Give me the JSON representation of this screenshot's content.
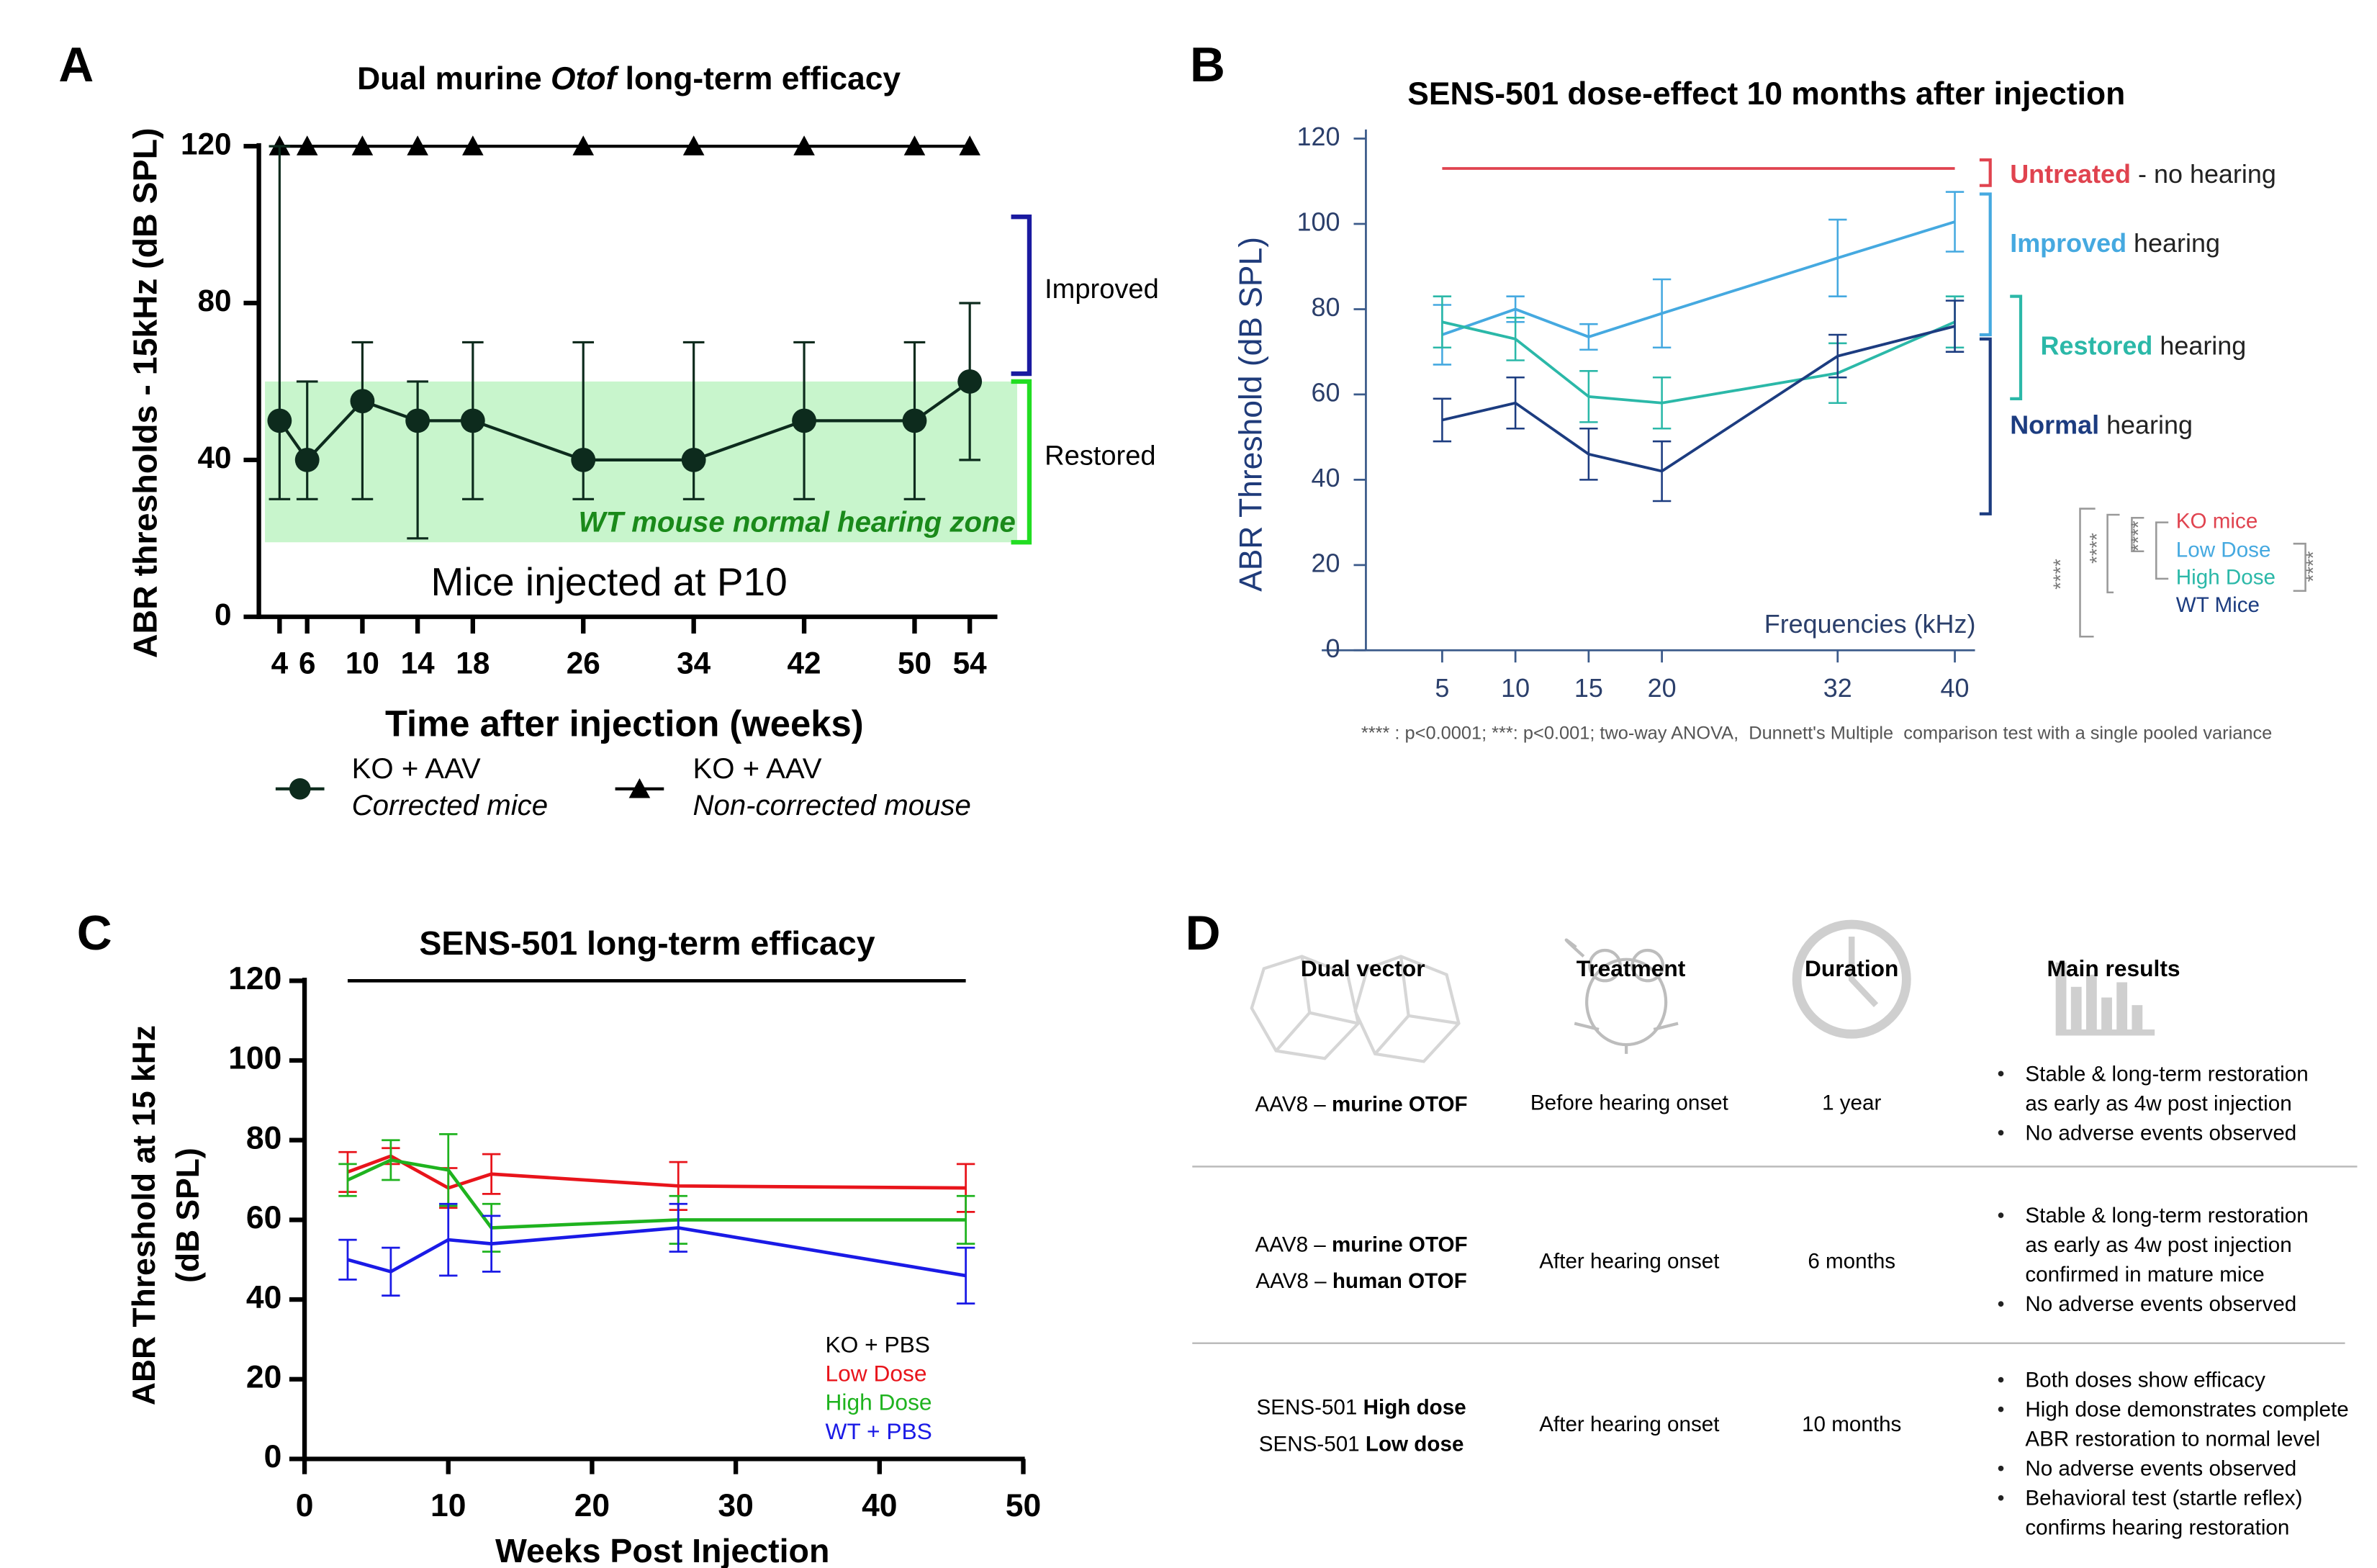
{
  "panel_labels": [
    "A",
    "B",
    "C",
    "D"
  ],
  "chart_data": [
    {
      "type": "line",
      "title_parts": [
        "Dual murine ",
        "Otof",
        " long-term efficacy"
      ],
      "x": [
        4,
        6,
        10,
        14,
        18,
        26,
        34,
        42,
        50,
        54
      ],
      "xlim": [
        2.5,
        56
      ],
      "xticks": [
        4,
        6,
        10,
        14,
        18,
        26,
        34,
        42,
        50,
        54
      ],
      "ylim": [
        0,
        120
      ],
      "yticks": [
        0,
        40,
        80,
        120
      ],
      "xlabel": "Time after injection (weeks)",
      "ylabel": "ABR thresholds - 15kHz (dB SPL)",
      "series": [
        {
          "name": "KO + AAV",
          "description": "Corrected mice",
          "marker": "circle",
          "color": "#0d2b1d",
          "values": [
            50,
            40,
            55,
            50,
            50,
            40,
            40,
            50,
            50,
            60
          ],
          "error_plus": [
            70,
            20,
            15,
            10,
            20,
            30,
            30,
            20,
            20,
            20
          ],
          "error_minus": [
            20,
            10,
            25,
            30,
            20,
            10,
            10,
            20,
            20,
            20
          ]
        },
        {
          "name": "KO + AAV",
          "description": "Non-corrected mouse",
          "marker": "triangle",
          "color": "#000000",
          "values": [
            120,
            120,
            120,
            120,
            120,
            120,
            120,
            120,
            120,
            120
          ]
        }
      ],
      "zone": {
        "label": "WT mouse normal hearing zone",
        "range": [
          19,
          60
        ],
        "color": "#c8f5cc"
      },
      "brackets": [
        {
          "label": "Improved",
          "range": [
            62,
            102
          ],
          "color": "#1a1aa0"
        },
        {
          "label": "Restored",
          "range": [
            19,
            60
          ],
          "color": "#22dd22"
        }
      ],
      "annotation": "Mice injected at P10"
    },
    {
      "type": "line",
      "title": "SENS-501 dose-effect 10 months after injection",
      "x": [
        5,
        10,
        15,
        20,
        32,
        40
      ],
      "xlim": [
        0,
        42
      ],
      "xticks": [
        5,
        10,
        15,
        20,
        32,
        40
      ],
      "ylim": [
        0,
        120
      ],
      "yticks": [
        0,
        20,
        40,
        60,
        80,
        100,
        120
      ],
      "xlabel": "Frequencies (kHz)",
      "ylabel": "ABR Threshold (dB SPL)",
      "series": [
        {
          "name": "KO mice",
          "color": "#e0434f",
          "values": [
            113,
            113,
            113,
            113,
            113,
            113
          ]
        },
        {
          "name": "Low Dose",
          "color": "#45a9e0",
          "values": [
            74,
            80,
            73.5,
            79,
            92,
            100.5
          ],
          "errors": [
            7,
            3,
            3,
            8,
            9,
            7
          ]
        },
        {
          "name": "High Dose",
          "color": "#2bb8a8",
          "values": [
            77,
            73,
            59.5,
            58,
            65,
            77
          ],
          "errors": [
            6,
            5,
            6,
            6,
            7,
            6
          ]
        },
        {
          "name": "WT Mice",
          "color": "#1c3c80",
          "values": [
            54,
            58,
            46,
            42,
            69,
            76
          ],
          "errors": [
            5,
            6,
            6,
            7,
            5,
            6
          ]
        }
      ],
      "brackets": [
        {
          "bold": "Untreated",
          "text": " - no hearing",
          "color": "#e0434f",
          "range": [
            109,
            115
          ]
        },
        {
          "bold": "Improved",
          "text": " hearing",
          "color": "#45a9e0",
          "range": [
            74,
            107
          ]
        },
        {
          "bold": "Restored",
          "text": " hearing",
          "color": "#2bb8a8",
          "range": [
            59,
            83
          ]
        },
        {
          "bold": "Normal",
          "text": " hearing",
          "color": "#1c3c80",
          "range": [
            32,
            73
          ]
        }
      ],
      "significance": [
        "****",
        "****",
        "****",
        "****"
      ],
      "footnote": "**** : p<0.0001; ***: p<0.001; two-way ANOVA,  Dunnett's Multiple  comparison test with a single pooled variance"
    },
    {
      "type": "line",
      "title": "SENS-501 long-term efficacy",
      "x": [
        3,
        6,
        10,
        13,
        26,
        46
      ],
      "xlim": [
        0,
        50
      ],
      "xticks": [
        0,
        10,
        20,
        30,
        40,
        50
      ],
      "ylim": [
        0,
        120
      ],
      "yticks": [
        0,
        20,
        40,
        60,
        80,
        100,
        120
      ],
      "xlabel": "Weeks Post Injection",
      "ylabel_lines": [
        "ABR Threshold at 15 kHz",
        "(dB SPL)"
      ],
      "series": [
        {
          "name": "KO + PBS",
          "color": "#000000",
          "values": [
            120,
            120,
            120,
            120,
            120,
            120
          ]
        },
        {
          "name": "Low Dose",
          "color": "#e8141b",
          "values": [
            72,
            76,
            68,
            71.5,
            68.5,
            68
          ],
          "errors": [
            5,
            2,
            5,
            5,
            6,
            6
          ]
        },
        {
          "name": "High Dose",
          "color": "#1fb31f",
          "values": [
            70,
            75,
            72.5,
            58,
            60,
            60
          ],
          "errors": [
            4,
            5,
            9,
            6,
            6,
            6
          ]
        },
        {
          "name": "WT + PBS",
          "color": "#1a1ae6",
          "values": [
            50,
            47,
            55,
            54,
            58,
            46
          ],
          "errors": [
            5,
            6,
            9,
            7,
            6,
            7
          ]
        }
      ]
    }
  ],
  "table": {
    "headers": [
      "Dual vector",
      "Treatment",
      "Duration",
      "Main results"
    ],
    "rows": [
      {
        "vector": [
          {
            "text": "AAV8 – ",
            "bold": "murine OTOF"
          }
        ],
        "treatment": "Before hearing onset",
        "duration": "1 year",
        "results": [
          [
            "Stable & long-term restoration",
            "as early as 4w post injection"
          ],
          [
            "No adverse events observed"
          ]
        ]
      },
      {
        "vector": [
          {
            "text": "AAV8 – ",
            "bold": "murine OTOF"
          },
          {
            "text": "AAV8 – ",
            "bold": "human OTOF"
          }
        ],
        "treatment": "After hearing onset",
        "duration": "6 months",
        "results": [
          [
            "Stable & long-term restoration",
            "as early as 4w post injection",
            "confirmed in mature mice"
          ],
          [
            "No adverse events observed"
          ]
        ]
      },
      {
        "vector": [
          {
            "text": "SENS-501 ",
            "bold": "High dose"
          },
          {
            "text": "SENS-501 ",
            "bold": "Low dose"
          }
        ],
        "treatment": "After hearing onset",
        "duration": "10 months",
        "results": [
          [
            "Both doses show efficacy"
          ],
          [
            "High dose demonstrates complete",
            "ABR restoration to normal level"
          ],
          [
            "No adverse events observed"
          ],
          [
            "Behavioral test (startle reflex)",
            "confirms hearing restoration"
          ]
        ]
      }
    ]
  }
}
